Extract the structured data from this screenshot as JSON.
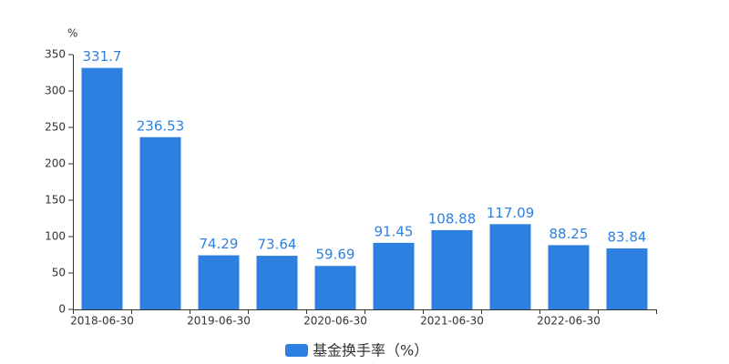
{
  "chart_data": {
    "type": "bar",
    "ylabel": "%",
    "categories": [
      "2018-06-30",
      null,
      "2019-06-30",
      null,
      "2020-06-30",
      null,
      "2021-06-30",
      null,
      "2022-06-30",
      null
    ],
    "series": [
      {
        "name": "基金换手率（%）",
        "color": "#2e80e0",
        "values": [
          331.7,
          236.53,
          74.29,
          73.64,
          59.69,
          91.45,
          108.88,
          117.09,
          88.25,
          83.84
        ]
      }
    ],
    "ylim": [
      0,
      350
    ],
    "yticks": [
      0,
      50,
      100,
      150,
      200,
      250,
      300,
      350
    ],
    "grid": false,
    "legend": "bottom"
  }
}
